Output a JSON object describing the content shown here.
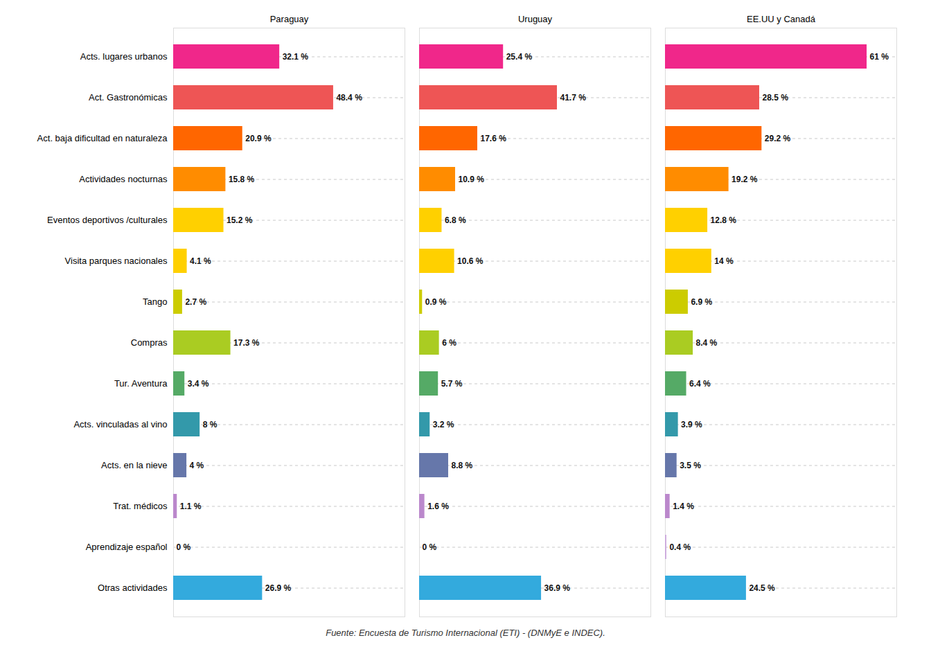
{
  "chart_data": {
    "type": "bar",
    "orientation": "horizontal",
    "caption": "Fuente: Encuesta de Turismo Internacional (ETI) - (DNMyE e INDEC).",
    "categories": [
      "Acts. lugares urbanos",
      "Act. Gastronómicas",
      "Act. baja dificultad en naturaleza",
      "Actividades nocturnas",
      "Eventos deportivos /culturales",
      "Visita parques nacionales",
      "Tango",
      "Compras",
      "Tur. Aventura",
      "Acts. vinculadas al vino",
      "Acts. en la nieve",
      "Trat. médicos",
      "Aprendizaje español",
      "Otras actividades"
    ],
    "series": [
      {
        "name": "Paraguay",
        "values": [
          32.1,
          48.4,
          20.9,
          15.8,
          15.2,
          4.1,
          2.7,
          17.3,
          3.4,
          8.0,
          4.0,
          1.1,
          0.0,
          26.9
        ],
        "value_labels": [
          "32.1 %",
          "48.4 %",
          "20.9 %",
          "15.8 %",
          "15.2 %",
          "4.1 %",
          "2.7 %",
          "17.3 %",
          "3.4 %",
          "8 %",
          "4 %",
          "1.1 %",
          "0 %",
          "26.9 %"
        ]
      },
      {
        "name": "Uruguay",
        "values": [
          25.4,
          41.7,
          17.6,
          10.9,
          6.8,
          10.6,
          0.9,
          6.0,
          5.7,
          3.2,
          8.8,
          1.6,
          0.0,
          36.9
        ],
        "value_labels": [
          "25.4 %",
          "41.7 %",
          "17.6 %",
          "10.9 %",
          "6.8 %",
          "10.6 %",
          "0.9 %",
          "6 %",
          "5.7 %",
          "3.2 %",
          "8.8 %",
          "1.6 %",
          "0 %",
          "36.9 %"
        ]
      },
      {
        "name": "EE.UU y Canadá",
        "values": [
          61.0,
          28.5,
          29.2,
          19.2,
          12.8,
          14.0,
          6.9,
          8.4,
          6.4,
          3.9,
          3.5,
          1.4,
          0.4,
          24.5
        ],
        "value_labels": [
          "61 %",
          "28.5 %",
          "29.2 %",
          "19.2 %",
          "12.8 %",
          "14 %",
          "6.9 %",
          "8.4 %",
          "6.4 %",
          "3.9 %",
          "3.5 %",
          "1.4 %",
          "0.4 %",
          "24.5 %"
        ]
      }
    ],
    "colors": [
      "#F0278A",
      "#EE5555",
      "#FF6600",
      "#FF8C00",
      "#FFD000",
      "#FFD000",
      "#CCCC00",
      "#AACC22",
      "#55AA66",
      "#3399AA",
      "#6677AA",
      "#BB88CC",
      "#CCAADD",
      "#33AADD"
    ],
    "xlim": [
      0,
      70
    ],
    "grid": true,
    "data_labels": true,
    "tick_labels": "y"
  }
}
